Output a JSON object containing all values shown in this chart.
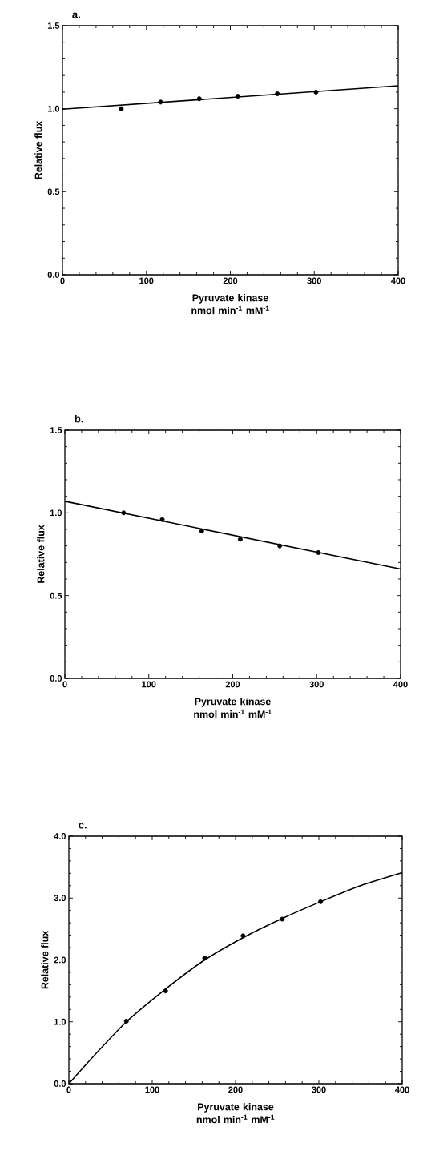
{
  "chart_data": [
    {
      "type": "scatter",
      "title": "a.",
      "xlabel": "Pyruvate kinase nmol min$^{-1}$ mM$^{-1}$",
      "ylabel": "Relative flux",
      "xlim": [
        0,
        400
      ],
      "ylim": [
        0,
        1.5
      ],
      "xticks": [
        0,
        100,
        200,
        300,
        400
      ],
      "yticks": [
        {
          "value": 0,
          "label": "0.0"
        },
        {
          "value": 0.5,
          "label": "0.5"
        },
        {
          "value": 1,
          "label": "1.0"
        },
        {
          "value": 1.5,
          "label": "1.5"
        }
      ],
      "series": [
        {
          "color": "#000000",
          "x": [
            70,
            117,
            163,
            209,
            256,
            302
          ],
          "values": [
            1.0,
            1.04,
            1.06,
            1.075,
            1.09,
            1.1
          ]
        },
        {
          "type": "line",
          "color": "#000000",
          "x": [
            0,
            400
          ],
          "values": [
            0.997,
            1.138
          ]
        }
      ]
    },
    {
      "type": "scatter",
      "title": "b.",
      "xlabel": "Pyruvate kinase nmol min$^{-1}$ mM$^{-1}$",
      "ylabel": "Relative flux",
      "xlim": [
        0,
        400
      ],
      "ylim": [
        0,
        1.5
      ],
      "xticks": [
        0,
        100,
        200,
        300,
        400
      ],
      "yticks": [
        {
          "value": 0,
          "label": "0.0"
        },
        {
          "value": 0.5,
          "label": "0.5"
        },
        {
          "value": 1,
          "label": "1.0"
        },
        {
          "value": 1.5,
          "label": "1.5"
        }
      ],
      "series": [
        {
          "color": "#000000",
          "x": [
            70,
            116,
            163,
            209,
            256,
            302
          ],
          "values": [
            1.0,
            0.96,
            0.89,
            0.84,
            0.8,
            0.76
          ]
        },
        {
          "type": "line",
          "color": "#000000",
          "x": [
            0,
            400
          ],
          "values": [
            1.07,
            0.66
          ]
        }
      ]
    },
    {
      "type": "scatter",
      "title": "c.",
      "xlabel": "Pyruvate kinase nmol min$^{-1}$ mM$^{-1}$",
      "ylabel": "Relative flux",
      "xlim": [
        0,
        400
      ],
      "ylim": [
        0,
        4
      ],
      "xticks": [
        0,
        100,
        200,
        300,
        400
      ],
      "yticks": [
        {
          "value": 0,
          "label": "0.0"
        },
        {
          "value": 1,
          "label": "1.0"
        },
        {
          "value": 2,
          "label": "2.0"
        },
        {
          "value": 3,
          "label": "3.0"
        },
        {
          "value": 4,
          "label": "4.0"
        }
      ],
      "series": [
        {
          "color": "#000000",
          "x": [
            69,
            116,
            163,
            209,
            256,
            302
          ],
          "values": [
            1.01,
            1.5,
            2.03,
            2.39,
            2.66,
            2.94
          ]
        },
        {
          "type": "line",
          "color": "#000000",
          "x": [
            0,
            30,
            69,
            116,
            163,
            209,
            256,
            302,
            350,
            400
          ],
          "values": [
            0,
            0.45,
            1.0,
            1.53,
            2.0,
            2.36,
            2.67,
            2.94,
            3.2,
            3.41
          ]
        }
      ]
    }
  ]
}
